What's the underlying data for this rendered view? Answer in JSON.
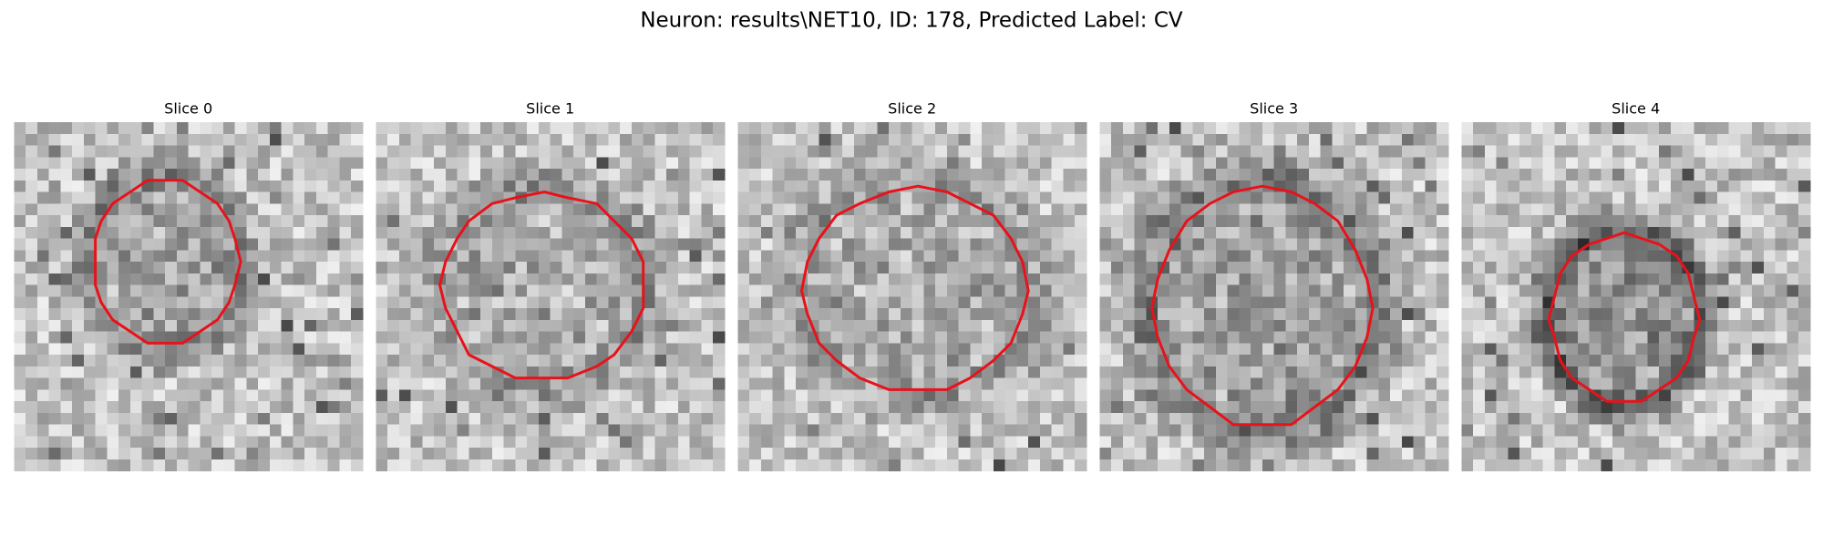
{
  "title": "Neuron: results\\NET10, ID: 178, Predicted Label: CV",
  "panels": [
    {
      "title": "Slice 0"
    },
    {
      "title": "Slice 1"
    },
    {
      "title": "Slice 2"
    },
    {
      "title": "Slice 3"
    },
    {
      "title": "Slice 4"
    }
  ]
}
